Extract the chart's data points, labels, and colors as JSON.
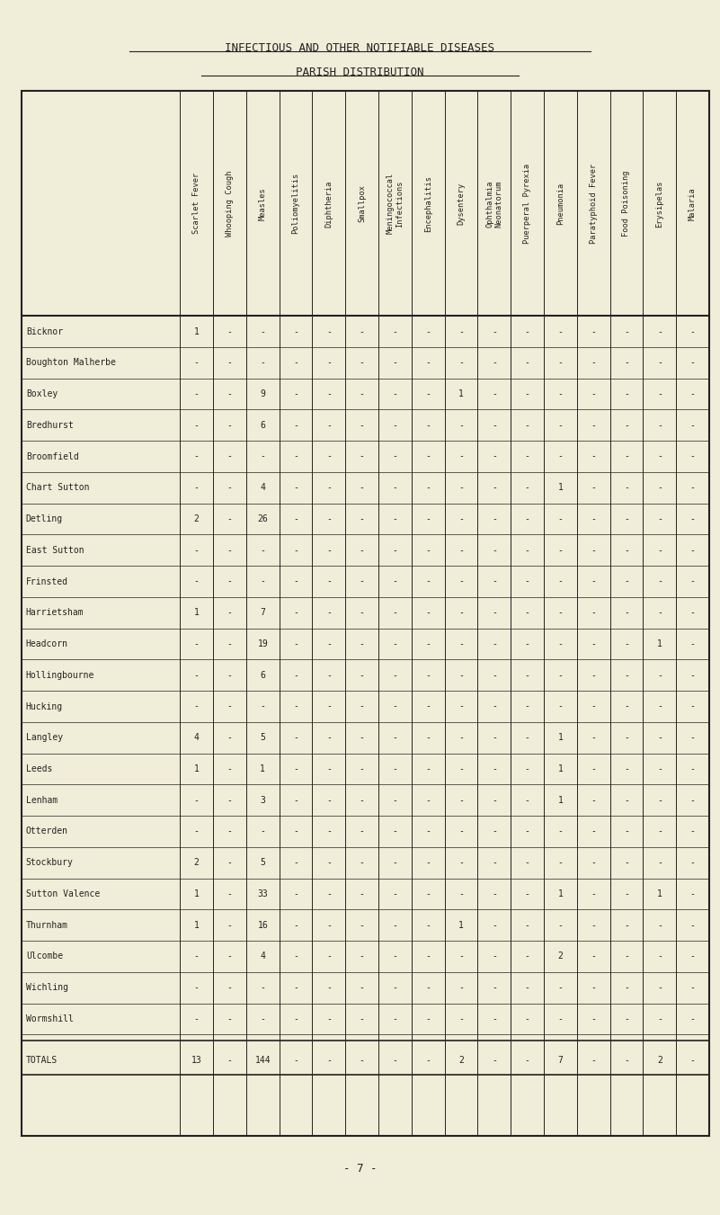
{
  "title1": "INFECTIOUS AND OTHER NOTIFIABLE DISEASES",
  "title2": "PARISH DISTRIBUTION",
  "bg_color": "#f0edd8",
  "columns": [
    "Scarlet Fever",
    "Whooping Cough",
    "Measles",
    "Poliomyelitis",
    "Diphtheria",
    "Smallpox",
    "Meningococcal\nInfections",
    "Encephalitis",
    "Dysentery",
    "Ophthalmia\nNeonatorum",
    "Puerperal Pyrexia",
    "Pneumonia",
    "Paratyphoid Fever",
    "Food Poisoning",
    "Erysipelas",
    "Malaria"
  ],
  "rows": [
    [
      "Bicknor",
      "1",
      "-",
      "-",
      "-",
      "-",
      "-",
      "-",
      "-",
      "-",
      "-",
      "-",
      "-",
      "-",
      "-",
      "-",
      "-"
    ],
    [
      "Boughton Malherbe",
      "-",
      "-",
      "-",
      "-",
      "-",
      "-",
      "-",
      "-",
      "-",
      "-",
      "-",
      "-",
      "-",
      "-",
      "-",
      "-"
    ],
    [
      "Boxley",
      "-",
      "-",
      "9",
      "-",
      "-",
      "-",
      "-",
      "-",
      "1",
      "-",
      "-",
      "-",
      "-",
      "-",
      "-",
      "-"
    ],
    [
      "Bredhurst",
      "-",
      "-",
      "6",
      "-",
      "-",
      "-",
      "-",
      "-",
      "-",
      "-",
      "-",
      "-",
      "-",
      "-",
      "-",
      "-"
    ],
    [
      "Broomfield",
      "-",
      "-",
      "-",
      "-",
      "-",
      "-",
      "-",
      "-",
      "-",
      "-",
      "-",
      "-",
      "-",
      "-",
      "-",
      "-"
    ],
    [
      "Chart Sutton",
      "-",
      "-",
      "4",
      "-",
      "-",
      "-",
      "-",
      "-",
      "-",
      "-",
      "-",
      "1",
      "-",
      "-",
      "-",
      "-"
    ],
    [
      "Detling",
      "2",
      "-",
      "26",
      "-",
      "-",
      "-",
      "-",
      "-",
      "-",
      "-",
      "-",
      "-",
      "-",
      "-",
      "-",
      "-"
    ],
    [
      "East Sutton",
      "-",
      "-",
      "-",
      "-",
      "-",
      "-",
      "-",
      "-",
      "-",
      "-",
      "-",
      "-",
      "-",
      "-",
      "-",
      "-"
    ],
    [
      "Frinsted",
      "-",
      "-",
      "-",
      "-",
      "-",
      "-",
      "-",
      "-",
      "-",
      "-",
      "-",
      "-",
      "-",
      "-",
      "-",
      "-"
    ],
    [
      "Harrietsham",
      "1",
      "-",
      "7",
      "-",
      "-",
      "-",
      "-",
      "-",
      "-",
      "-",
      "-",
      "-",
      "-",
      "-",
      "-",
      "-"
    ],
    [
      "Headcorn",
      "-",
      "-",
      "19",
      "-",
      "-",
      "-",
      "-",
      "-",
      "-",
      "-",
      "-",
      "-",
      "-",
      "-",
      "1",
      "-"
    ],
    [
      "Hollingbourne",
      "-",
      "-",
      "6",
      "-",
      "-",
      "-",
      "-",
      "-",
      "-",
      "-",
      "-",
      "-",
      "-",
      "-",
      "-",
      "-"
    ],
    [
      "Hucking",
      "-",
      "-",
      "-",
      "-",
      "-",
      "-",
      "-",
      "-",
      "-",
      "-",
      "-",
      "-",
      "-",
      "-",
      "-",
      "-"
    ],
    [
      "Langley",
      "4",
      "-",
      "5",
      "-",
      "-",
      "-",
      "-",
      "-",
      "-",
      "-",
      "-",
      "1",
      "-",
      "-",
      "-",
      "-"
    ],
    [
      "Leeds",
      "1",
      "-",
      "1",
      "-",
      "-",
      "-",
      "-",
      "-",
      "-",
      "-",
      "-",
      "1",
      "-",
      "-",
      "-",
      "-"
    ],
    [
      "Lenham",
      "-",
      "-",
      "3",
      "-",
      "-",
      "-",
      "-",
      "-",
      "-",
      "-",
      "-",
      "1",
      "-",
      "-",
      "-",
      "-"
    ],
    [
      "Otterden",
      "-",
      "-",
      "-",
      "-",
      "-",
      "-",
      "-",
      "-",
      "-",
      "-",
      "-",
      "-",
      "-",
      "-",
      "-",
      "-"
    ],
    [
      "Stockbury",
      "2",
      "-",
      "5",
      "-",
      "-",
      "-",
      "-",
      "-",
      "-",
      "-",
      "-",
      "-",
      "-",
      "-",
      "-",
      "-"
    ],
    [
      "Sutton Valence",
      "1",
      "-",
      "33",
      "-",
      "-",
      "-",
      "-",
      "-",
      "-",
      "-",
      "-",
      "1",
      "-",
      "-",
      "1",
      "-"
    ],
    [
      "Thurnham",
      "1",
      "-",
      "16",
      "-",
      "-",
      "-",
      "-",
      "-",
      "1",
      "-",
      "-",
      "-",
      "-",
      "-",
      "-",
      "-"
    ],
    [
      "Ulcombe",
      "-",
      "-",
      "4",
      "-",
      "-",
      "-",
      "-",
      "-",
      "-",
      "-",
      "-",
      "2",
      "-",
      "-",
      "-",
      "-"
    ],
    [
      "Wichling",
      "-",
      "-",
      "-",
      "-",
      "-",
      "-",
      "-",
      "-",
      "-",
      "-",
      "-",
      "-",
      "-",
      "-",
      "-",
      "-"
    ],
    [
      "Wormshill",
      "-",
      "-",
      "-",
      "-",
      "-",
      "-",
      "-",
      "-",
      "-",
      "-",
      "-",
      "-",
      "-",
      "-",
      "-",
      "-"
    ]
  ],
  "totals": [
    "TOTALS",
    "13",
    "-",
    "144",
    "-",
    "-",
    "-",
    "-",
    "-",
    "2",
    "-",
    "-",
    "7",
    "-",
    "-",
    "2",
    "-"
  ],
  "footer": "- 7 -"
}
